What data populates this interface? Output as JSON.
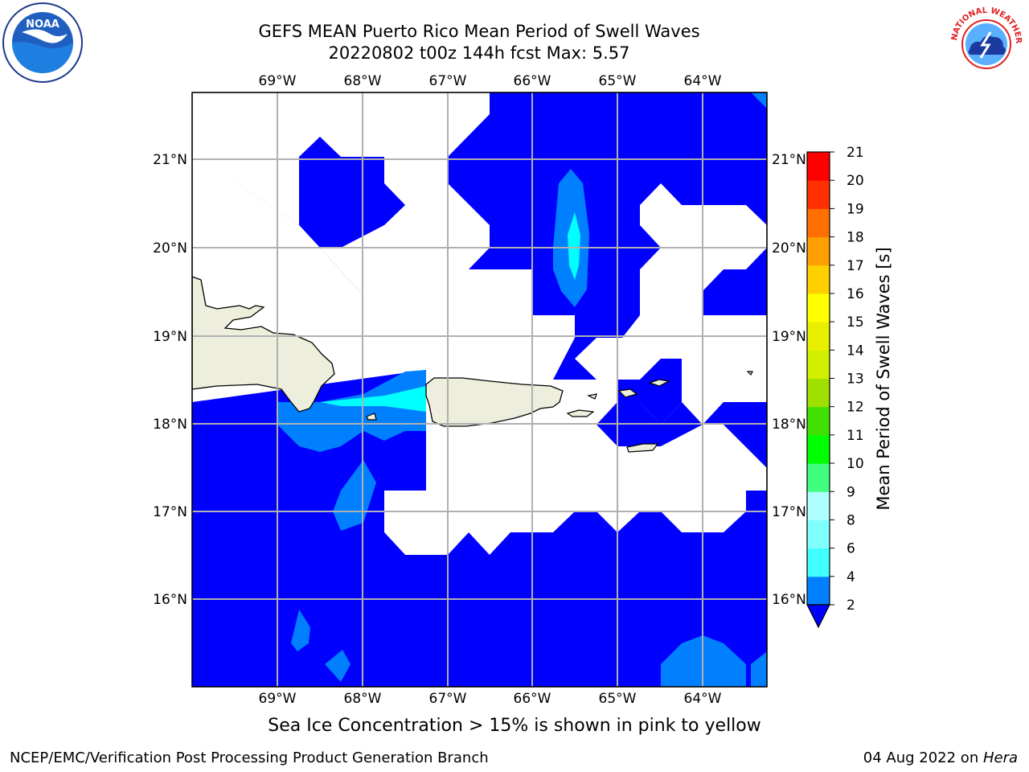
{
  "title": {
    "line1": "GEFS MEAN Puerto Rico Mean Period of Swell Waves",
    "line2": "20220802 t00z 144h fcst   Max: 5.57"
  },
  "map": {
    "lon_labels": [
      "69°W",
      "68°W",
      "67°W",
      "66°W",
      "65°W",
      "64°W"
    ],
    "lat_labels": [
      "21°N",
      "20°N",
      "19°N",
      "18°N",
      "17°N",
      "16°N"
    ],
    "colors": {
      "level_2_4": "#0000ff",
      "level_4_6": "#0080ff",
      "level_6_8": "#00ffff",
      "land": "#eeeedc",
      "grid": "#b0b0b0"
    }
  },
  "colorbar": {
    "title": "Mean Period of Swell Waves [s]",
    "ticks": [
      "2",
      "4",
      "6",
      "8",
      "9",
      "10",
      "11",
      "12",
      "13",
      "14",
      "15",
      "16",
      "17",
      "18",
      "19",
      "20",
      "21"
    ],
    "colors": [
      "#0080ff",
      "#00e5ff",
      "#40ffff",
      "#80ffff",
      "#b0ffff",
      "#40ff80",
      "#00ff00",
      "#40e000",
      "#a0e000",
      "#d0f000",
      "#e8f000",
      "#ffff00",
      "#ffd000",
      "#ffa000",
      "#ff7000",
      "#ff3000",
      "#ff0000"
    ]
  },
  "caption": "Sea Ice Concentration > 15% is shown in pink to yellow",
  "footer": {
    "left": "NCEP/EMC/Verification Post Processing Product Generation Branch",
    "right_date": "04 Aug 2022 on ",
    "right_machine": "Hera"
  },
  "logos": {
    "noaa_text": "NOAA",
    "nws_text": "NATIONAL WEATHER SERVICE"
  }
}
